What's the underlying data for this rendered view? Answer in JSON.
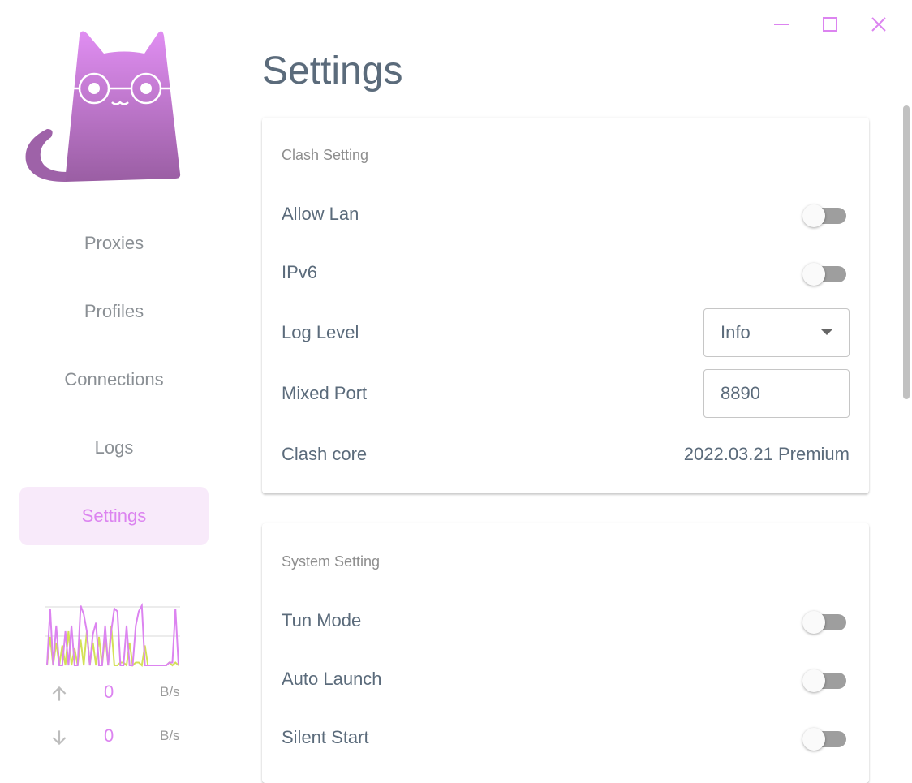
{
  "window": {
    "controls": [
      "minimize-icon",
      "maximize-icon",
      "close-icon"
    ],
    "accent": "#dc84f0"
  },
  "sidebar": {
    "items": [
      {
        "label": "Proxies"
      },
      {
        "label": "Profiles"
      },
      {
        "label": "Connections"
      },
      {
        "label": "Logs"
      },
      {
        "label": "Settings",
        "active": true
      }
    ],
    "traffic": {
      "upload": {
        "value": "0",
        "unit": "B/s"
      },
      "download": {
        "value": "0",
        "unit": "B/s"
      },
      "upload_series": [
        0,
        10,
        0,
        8,
        0,
        7,
        0,
        12,
        0,
        6,
        0,
        9,
        0,
        12,
        0,
        8,
        0,
        10,
        0,
        11,
        0,
        14,
        0,
        0,
        1,
        1,
        0,
        8,
        0,
        1,
        1,
        0,
        7,
        0,
        0,
        0,
        0,
        0,
        0,
        0,
        1,
        0,
        1,
        0
      ],
      "download_series": [
        0,
        20,
        0,
        14,
        0,
        0,
        12,
        0,
        14,
        0,
        0,
        21,
        18,
        12,
        0,
        11,
        15,
        0,
        0,
        14,
        0,
        12,
        20,
        19,
        0,
        0,
        14,
        0,
        0,
        14,
        19,
        21,
        0,
        0,
        0,
        0,
        0,
        0,
        0,
        0,
        1,
        1,
        20,
        0
      ]
    }
  },
  "main": {
    "title": "Settings",
    "clash": {
      "heading": "Clash Setting",
      "allow_lan": {
        "label": "Allow Lan",
        "on": false
      },
      "ipv6": {
        "label": "IPv6",
        "on": false
      },
      "log_level": {
        "label": "Log Level",
        "value": "Info"
      },
      "mixed_port": {
        "label": "Mixed Port",
        "value": "8890"
      },
      "core": {
        "label": "Clash core",
        "value": "2022.03.21 Premium"
      }
    },
    "system": {
      "heading": "System Setting",
      "tun": {
        "label": "Tun Mode",
        "on": false
      },
      "auto_launch": {
        "label": "Auto Launch",
        "on": false
      },
      "silent": {
        "label": "Silent Start",
        "on": false
      }
    }
  }
}
